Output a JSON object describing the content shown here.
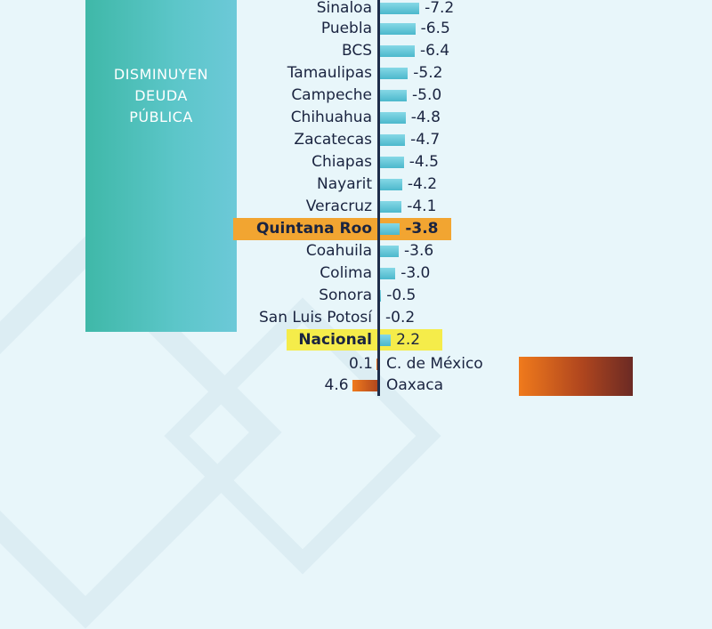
{
  "decrease_panel": {
    "lines": [
      "DISMINUYEN",
      "DEUDA",
      "PÚBLICA"
    ],
    "color": "#5cc6c9"
  },
  "colors": {
    "bar_negative": "#4cb8cc",
    "bar_national": "#4cb8cc",
    "bar_positive": "#c0461c",
    "highlight_state": "#f2a531",
    "highlight_national": "#f5ec4a",
    "axis": "#1f2d4a"
  },
  "chart_data": {
    "type": "bar",
    "orientation": "horizontal",
    "categories": [
      "Sinaloa",
      "Puebla",
      "BCS",
      "Tamaulipas",
      "Campeche",
      "Chihuahua",
      "Zacatecas",
      "Chiapas",
      "Nayarit",
      "Veracruz",
      "Quintana Roo",
      "Coahuila",
      "Colima",
      "Sonora",
      "San Luis Potosí",
      "Nacional",
      "C. de México",
      "Oaxaca"
    ],
    "values": [
      -7.2,
      -6.5,
      -6.4,
      -5.2,
      -5.0,
      -4.8,
      -4.7,
      -4.5,
      -4.2,
      -4.1,
      -3.8,
      -3.6,
      -3.0,
      -0.5,
      -0.2,
      2.2,
      0.1,
      4.6
    ],
    "value_labels": [
      "-7.2",
      "-6.5",
      "-6.4",
      "-5.2",
      "-5.0",
      "-4.8",
      "-4.7",
      "-4.5",
      "-4.2",
      "-4.1",
      "-3.8",
      "-3.6",
      "-3.0",
      "-0.5",
      "-0.2",
      "2.2",
      "0.1",
      "4.6"
    ],
    "highlighted": {
      "Quintana Roo": "orange",
      "Nacional": "yellow"
    },
    "grid": false,
    "legend": "none"
  }
}
